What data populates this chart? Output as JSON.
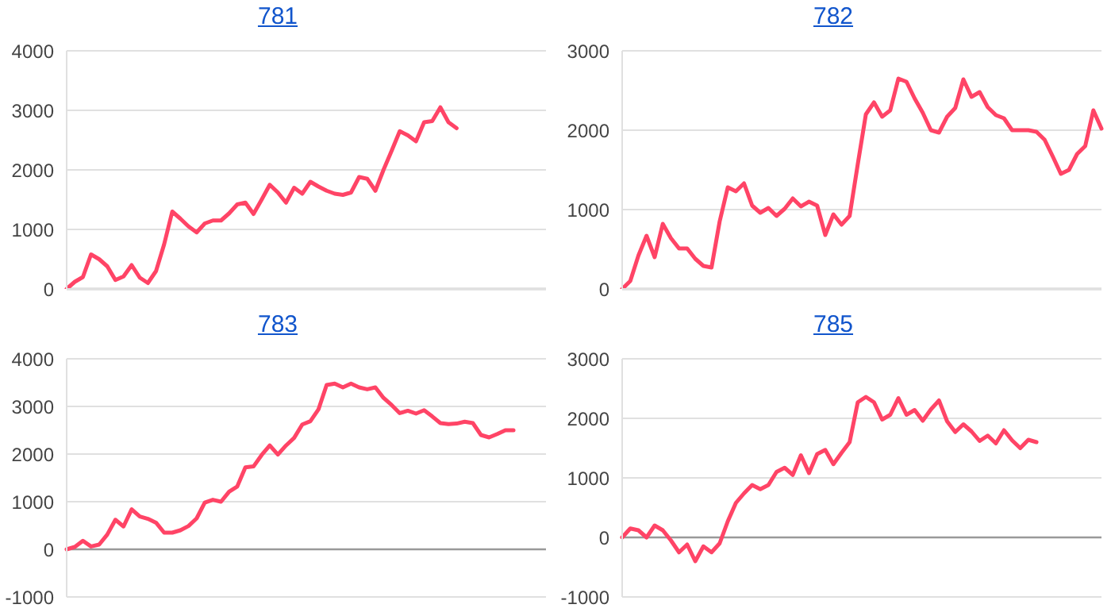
{
  "chart_data": [
    {
      "type": "line",
      "title": "781",
      "categories": [
        null,
        null,
        null,
        null,
        null,
        null,
        null,
        null,
        null,
        null,
        null,
        null,
        null,
        null,
        null,
        null,
        null,
        null,
        null,
        null,
        null,
        null,
        null,
        null,
        null,
        null,
        null,
        null,
        null,
        null,
        null,
        null,
        null,
        null,
        null,
        null,
        null,
        null,
        null,
        null,
        null,
        null,
        null,
        null,
        null,
        null,
        null,
        null,
        null,
        null,
        null,
        null,
        null,
        null,
        null,
        null,
        null,
        null,
        null,
        null
      ],
      "series": [
        {
          "color": "#ff4466",
          "values": [
            0,
            120,
            200,
            580,
            500,
            380,
            150,
            210,
            400,
            190,
            100,
            300,
            750,
            1300,
            1180,
            1050,
            950,
            1100,
            1150,
            1150,
            1270,
            1420,
            1450,
            1260,
            1500,
            1750,
            1620,
            1450,
            1700,
            1600,
            1800,
            1720,
            1650,
            1600,
            1580,
            1620,
            1880,
            1850,
            1650,
            2000,
            2320,
            2650,
            2580,
            2480,
            2800,
            2820,
            3050,
            2800,
            2700,
            null,
            null,
            null,
            null,
            null,
            null,
            null,
            null,
            null,
            null,
            null
          ]
        }
      ],
      "ylim": [
        0,
        4000
      ],
      "yticks": [
        0,
        1000,
        2000,
        3000,
        4000
      ],
      "grid": "y",
      "tick_labels": "y",
      "ref_lines": [
        {
          "axis": "y",
          "value": 0,
          "color": "#999999"
        }
      ]
    },
    {
      "type": "line",
      "title": "782",
      "categories": [
        null,
        null,
        null,
        null,
        null,
        null,
        null,
        null,
        null,
        null,
        null,
        null,
        null,
        null,
        null,
        null,
        null,
        null,
        null,
        null,
        null,
        null,
        null,
        null,
        null,
        null,
        null,
        null,
        null,
        null,
        null,
        null,
        null,
        null,
        null,
        null,
        null,
        null,
        null,
        null,
        null,
        null,
        null,
        null,
        null,
        null,
        null,
        null,
        null,
        null,
        null,
        null,
        null,
        null,
        null,
        null,
        null,
        null,
        null,
        null
      ],
      "series": [
        {
          "color": "#ff4466",
          "values": [
            0,
            100,
            420,
            670,
            400,
            820,
            640,
            510,
            510,
            380,
            290,
            270,
            850,
            1280,
            1230,
            1330,
            1050,
            960,
            1020,
            920,
            1010,
            1140,
            1040,
            1100,
            1050,
            680,
            940,
            810,
            920,
            1570,
            2200,
            2350,
            2170,
            2250,
            2650,
            2610,
            2400,
            2220,
            2000,
            1970,
            2170,
            2280,
            2640,
            2420,
            2480,
            2290,
            2190,
            2150,
            2000,
            2000,
            2000,
            1980,
            1880,
            1670,
            1450,
            1500,
            1700,
            1800,
            2250,
            2020
          ]
        }
      ],
      "ylim": [
        0,
        3000
      ],
      "yticks": [
        0,
        1000,
        2000,
        3000
      ],
      "grid": "y",
      "tick_labels": "y",
      "ref_lines": [
        {
          "axis": "y",
          "value": 0,
          "color": "#999999"
        }
      ]
    },
    {
      "type": "line",
      "title": "783",
      "categories": [
        null,
        null,
        null,
        null,
        null,
        null,
        null,
        null,
        null,
        null,
        null,
        null,
        null,
        null,
        null,
        null,
        null,
        null,
        null,
        null,
        null,
        null,
        null,
        null,
        null,
        null,
        null,
        null,
        null,
        null,
        null,
        null,
        null,
        null,
        null,
        null,
        null,
        null,
        null,
        null,
        null,
        null,
        null,
        null,
        null,
        null,
        null,
        null,
        null,
        null,
        null,
        null,
        null,
        null,
        null,
        null,
        null,
        null,
        null,
        null
      ],
      "series": [
        {
          "color": "#ff4466",
          "values": [
            0,
            50,
            180,
            60,
            100,
            310,
            620,
            480,
            840,
            690,
            640,
            560,
            350,
            350,
            400,
            490,
            650,
            980,
            1040,
            1000,
            1210,
            1320,
            1720,
            1740,
            1980,
            2180,
            1990,
            2180,
            2340,
            2620,
            2690,
            2940,
            3450,
            3480,
            3400,
            3480,
            3400,
            3360,
            3400,
            3180,
            3030,
            2860,
            2910,
            2850,
            2920,
            2790,
            2650,
            2630,
            2640,
            2680,
            2650,
            2400,
            2350,
            2420,
            2500,
            2500,
            null,
            null,
            null,
            null
          ]
        }
      ],
      "ylim": [
        -1000,
        4000
      ],
      "yticks": [
        -1000,
        0,
        1000,
        2000,
        3000,
        4000
      ],
      "grid": "y",
      "tick_labels": "y",
      "ref_lines": [
        {
          "axis": "y",
          "value": 0,
          "color": "#999999"
        }
      ]
    },
    {
      "type": "line",
      "title": "785",
      "categories": [
        null,
        null,
        null,
        null,
        null,
        null,
        null,
        null,
        null,
        null,
        null,
        null,
        null,
        null,
        null,
        null,
        null,
        null,
        null,
        null,
        null,
        null,
        null,
        null,
        null,
        null,
        null,
        null,
        null,
        null,
        null,
        null,
        null,
        null,
        null,
        null,
        null,
        null,
        null,
        null,
        null,
        null,
        null,
        null,
        null,
        null,
        null,
        null,
        null,
        null,
        null,
        null,
        null,
        null,
        null,
        null,
        null,
        null,
        null,
        null
      ],
      "series": [
        {
          "color": "#ff4466",
          "values": [
            0,
            150,
            120,
            0,
            200,
            120,
            -50,
            -250,
            -120,
            -400,
            -150,
            -250,
            -100,
            270,
            580,
            740,
            880,
            810,
            880,
            1100,
            1170,
            1050,
            1380,
            1080,
            1400,
            1470,
            1230,
            1420,
            1600,
            2270,
            2360,
            2270,
            1980,
            2060,
            2340,
            2060,
            2140,
            1960,
            2150,
            2300,
            1950,
            1770,
            1900,
            1780,
            1620,
            1710,
            1580,
            1800,
            1630,
            1500,
            1640,
            1600,
            null,
            null,
            null,
            null,
            null,
            null,
            null,
            null
          ]
        }
      ],
      "ylim": [
        -1000,
        3000
      ],
      "yticks": [
        -1000,
        0,
        1000,
        2000,
        3000
      ],
      "grid": "y",
      "tick_labels": "y",
      "ref_lines": [
        {
          "axis": "y",
          "value": 0,
          "color": "#999999"
        }
      ]
    }
  ]
}
